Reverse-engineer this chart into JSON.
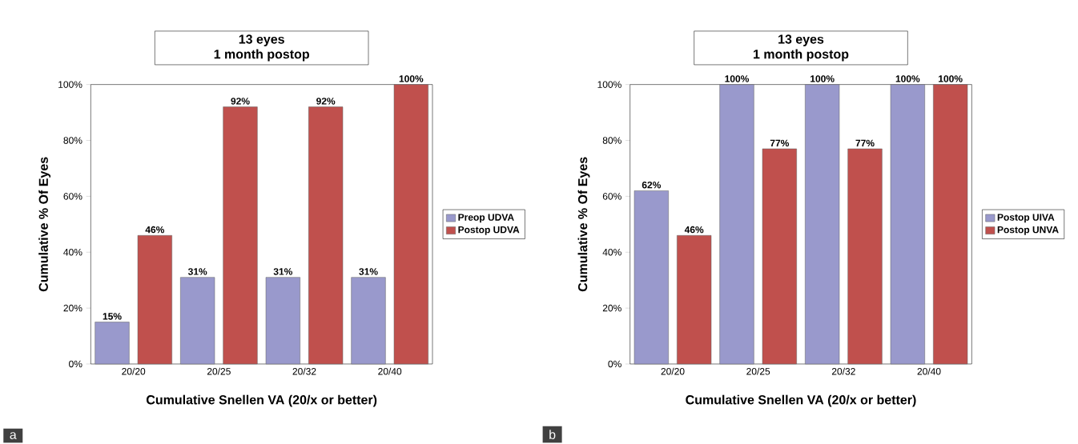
{
  "chart_data": [
    {
      "type": "bar",
      "title": "13 eyes",
      "subtitle": "1 month postop",
      "xlabel": "Cumulative Snellen VA (20/x or better)",
      "ylabel": "Cumulative % Of Eyes",
      "categories": [
        "20/20",
        "20/25",
        "20/32",
        "20/40"
      ],
      "series": [
        {
          "name": "Preop UDVA",
          "color": "#9999cc",
          "values": [
            15,
            31,
            31,
            31
          ],
          "value_labels": [
            "15%",
            "31%",
            "31%",
            "31%"
          ]
        },
        {
          "name": "Postop UDVA",
          "color": "#c0504d",
          "values": [
            46,
            92,
            92,
            100
          ],
          "value_labels": [
            "46%",
            "92%",
            "92%",
            "100%"
          ]
        }
      ],
      "ylim": [
        0,
        100
      ],
      "yticks": [
        {
          "value": 0,
          "label": "0%"
        },
        {
          "value": 20,
          "label": "20%"
        },
        {
          "value": 40,
          "label": "40%"
        },
        {
          "value": 60,
          "label": "60%"
        },
        {
          "value": 80,
          "label": "80%"
        },
        {
          "value": 100,
          "label": "100%"
        }
      ],
      "legend": "right",
      "annotations": [
        "a"
      ]
    },
    {
      "type": "bar",
      "title": "13 eyes",
      "subtitle": "1 month postop",
      "xlabel": "Cumulative Snellen VA (20/x or better)",
      "ylabel": "Cumulative % Of Eyes",
      "categories": [
        "20/20",
        "20/25",
        "20/32",
        "20/40"
      ],
      "series": [
        {
          "name": "Postop UIVA",
          "color": "#9999cc",
          "values": [
            62,
            100,
            100,
            100
          ],
          "value_labels": [
            "62%",
            "100%",
            "100%",
            "100%"
          ]
        },
        {
          "name": "Postop UNVA",
          "color": "#c0504d",
          "values": [
            46,
            77,
            77,
            100
          ],
          "value_labels": [
            "46%",
            "77%",
            "77%",
            "100%"
          ]
        }
      ],
      "ylim": [
        0,
        100
      ],
      "yticks": [
        {
          "value": 0,
          "label": "0%"
        },
        {
          "value": 20,
          "label": "20%"
        },
        {
          "value": 40,
          "label": "40%"
        },
        {
          "value": 60,
          "label": "60%"
        },
        {
          "value": 80,
          "label": "80%"
        },
        {
          "value": 100,
          "label": "100%"
        }
      ],
      "legend": "right",
      "annotations": [
        "b"
      ]
    }
  ]
}
